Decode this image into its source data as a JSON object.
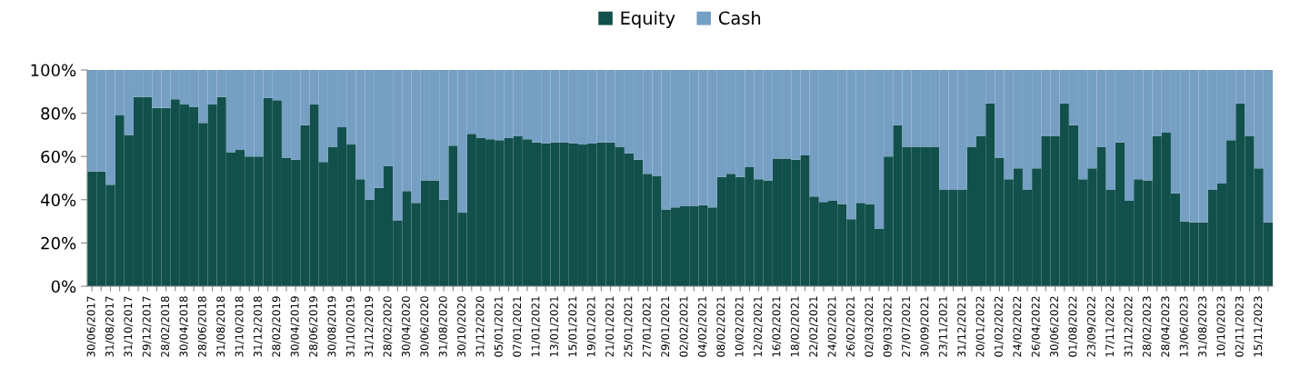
{
  "chart_data": {
    "type": "bar",
    "stacked": true,
    "legend": "top",
    "categories": [
      "30/06/2017",
      null,
      "31/08/2017",
      null,
      "31/10/2017",
      null,
      "29/12/2017",
      null,
      "28/02/2018",
      null,
      "30/04/2018",
      null,
      "28/06/2018",
      null,
      "31/08/2018",
      null,
      "31/10/2018",
      null,
      "31/12/2018",
      null,
      "28/02/2019",
      null,
      "30/04/2019",
      null,
      "28/06/2019",
      null,
      "30/08/2019",
      null,
      "31/10/2019",
      null,
      "31/12/2019",
      null,
      "28/02/2020",
      null,
      "30/04/2020",
      null,
      "30/06/2020",
      null,
      "31/08/2020",
      null,
      "30/10/2020",
      null,
      "31/12/2020",
      null,
      "05/01/2021",
      null,
      "07/01/2021",
      null,
      "11/01/2021",
      null,
      "13/01/2021",
      null,
      "15/01/2021",
      null,
      "19/01/2021",
      null,
      "21/01/2021",
      null,
      "25/01/2021",
      null,
      "27/01/2021",
      null,
      "29/01/2021",
      null,
      "02/02/2021",
      null,
      "04/02/2021",
      null,
      "08/02/2021",
      null,
      "10/02/2021",
      null,
      "12/02/2021",
      null,
      "16/02/2021",
      null,
      "18/02/2021",
      null,
      "22/02/2021",
      null,
      "24/02/2021",
      null,
      "26/02/2021",
      null,
      "02/03/2021",
      null,
      "09/03/2021",
      null,
      "27/07/2021",
      null,
      "30/09/2021",
      null,
      "23/11/2021",
      null,
      "31/12/2021",
      null,
      "20/01/2022",
      null,
      "01/02/2022",
      null,
      "24/02/2022",
      null,
      "26/04/2022",
      null,
      "30/06/2022",
      null,
      "01/08/2022",
      null,
      "23/09/2022",
      null,
      "17/11/2022",
      null,
      "31/12/2022",
      null,
      "28/02/2023",
      null,
      "28/04/2023",
      null,
      "13/06/2023",
      null,
      "31/08/2023",
      null,
      "10/10/2023",
      null,
      "02/11/2023",
      null,
      "15/11/2023",
      null
    ],
    "series": [
      {
        "name": "Equity",
        "color": "#12504b",
        "values": [
          53,
          53,
          47,
          79,
          70,
          87.5,
          87.5,
          82.5,
          82.5,
          86.5,
          84,
          83,
          75.5,
          84,
          87.5,
          62,
          63,
          60,
          60,
          87,
          86,
          59.5,
          58.5,
          74.5,
          84,
          57.5,
          64.5,
          73.5,
          65.5,
          49.5,
          40,
          45.5,
          55.5,
          30.5,
          44,
          38.5,
          49,
          49,
          40,
          65,
          34,
          70.5,
          68.5,
          68,
          67.5,
          68.5,
          69.5,
          68,
          66.5,
          66,
          66.5,
          66.5,
          66,
          65.5,
          66,
          66.5,
          66.5,
          64.5,
          61.5,
          58.5,
          52,
          51,
          35.5,
          36.5,
          37,
          37,
          37.5,
          36.5,
          50.5,
          52,
          50.5,
          55,
          49.5,
          49,
          59,
          59,
          58.5,
          60.5,
          41.5,
          39,
          39.5,
          38,
          31,
          38.5,
          38,
          26.5,
          60,
          74.5,
          64.5,
          64.5,
          64.5,
          64.5,
          44.5,
          44.5,
          44.5,
          64.5,
          69.5,
          84.5,
          59.5,
          49.5,
          54.5,
          44.5,
          54.5,
          69.5,
          69.5,
          84.5,
          74.5,
          49.5,
          54.5,
          64.5,
          44.5,
          66.5,
          39.5,
          49.5,
          49,
          69.5,
          71,
          43,
          30,
          29.5,
          29.5,
          44.5,
          47.5,
          67.5,
          84.5,
          69.5,
          54.5,
          29.5
        ]
      },
      {
        "name": "Cash",
        "color": "#769fc4",
        "values": [
          47,
          47,
          53,
          21,
          30,
          12.5,
          12.5,
          17.5,
          17.5,
          13.5,
          16,
          17,
          24.5,
          16,
          12.5,
          38,
          37,
          40,
          40,
          13,
          14,
          40.5,
          41.5,
          25.5,
          16,
          42.5,
          35.5,
          26.5,
          34.5,
          50.5,
          60,
          54.5,
          44.5,
          69.5,
          56,
          61.5,
          51,
          51,
          60,
          35,
          66,
          29.5,
          31.5,
          32,
          32.5,
          31.5,
          30.5,
          32,
          33.5,
          34,
          33.5,
          33.5,
          34,
          34.5,
          34,
          33.5,
          33.5,
          35.5,
          38.5,
          41.5,
          48,
          49,
          64.5,
          63.5,
          63,
          63,
          62.5,
          63.5,
          49.5,
          48,
          49.5,
          45,
          50.5,
          51,
          41,
          41,
          41.5,
          39.5,
          58.5,
          61,
          60.5,
          62,
          69,
          61.5,
          62,
          73.5,
          40,
          25.5,
          35.5,
          35.5,
          35.5,
          35.5,
          55.5,
          55.5,
          55.5,
          35.5,
          30.5,
          15.5,
          40.5,
          50.5,
          45.5,
          55.5,
          45.5,
          30.5,
          30.5,
          15.5,
          25.5,
          50.5,
          45.5,
          35.5,
          55.5,
          33.5,
          60.5,
          50.5,
          51,
          30.5,
          29,
          57,
          70,
          70.5,
          70.5,
          55.5,
          52.5,
          32.5,
          15.5,
          30.5,
          45.5,
          70.5
        ]
      }
    ],
    "ylim": [
      0,
      100
    ],
    "yticks": [
      {
        "value": 0,
        "label": "0%"
      },
      {
        "value": 20,
        "label": "20%"
      },
      {
        "value": 40,
        "label": "40%"
      },
      {
        "value": 60,
        "label": "60%"
      },
      {
        "value": 80,
        "label": "80%"
      },
      {
        "value": 100,
        "label": "100%"
      }
    ]
  }
}
